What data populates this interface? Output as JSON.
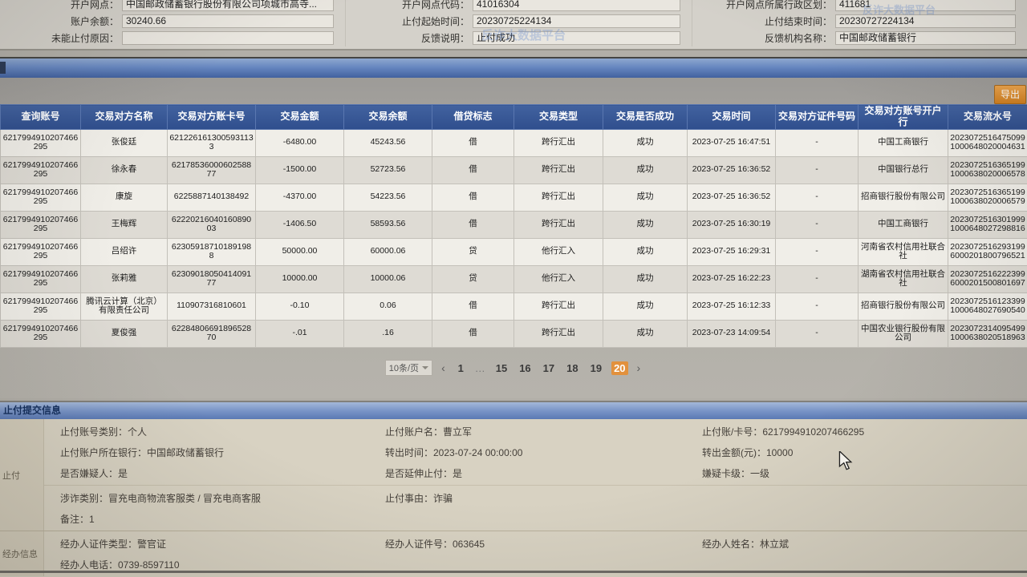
{
  "watermark": {
    "text": "反诈大数据平台"
  },
  "account_info": {
    "rows": [
      [
        {
          "label": "开户网点：",
          "value": "中国邮政储蓄银行股份有限公司项城市高寺..."
        },
        {
          "label": "开户网点代码：",
          "value": "41016304"
        },
        {
          "label": "开户网点所属行政区划：",
          "value": "411681"
        }
      ],
      [
        {
          "label": "账户余额：",
          "value": "30240.66"
        },
        {
          "label": "止付起始时间：",
          "value": "20230725224134"
        },
        {
          "label": "止付结束时间：",
          "value": "20230727224134"
        }
      ],
      [
        {
          "label": "未能止付原因：",
          "value": ""
        },
        {
          "label": "反馈说明：",
          "value": "止付成功"
        },
        {
          "label": "反馈机构名称：",
          "value": "中国邮政储蓄银行"
        }
      ]
    ]
  },
  "toolbar": {
    "export_label": "导出"
  },
  "transactions_table": {
    "columns": [
      "查询账号",
      "交易对方名称",
      "交易对方账卡号",
      "交易金额",
      "交易余额",
      "借贷标志",
      "交易类型",
      "交易是否成功",
      "交易时间",
      "交易对方证件号码",
      "交易对方账号开户行",
      "交易流水号"
    ],
    "rows": [
      [
        "6217994910207466295",
        "张俊廷",
        "6212261613005931133",
        "-6480.00",
        "45243.56",
        "借",
        "跨行汇出",
        "成功",
        "2023-07-25 16:47:51",
        "-",
        "中国工商银行",
        "20230725164750991000648020004631"
      ],
      [
        "6217994910207466295",
        "徐永春",
        "6217853600060258877",
        "-1500.00",
        "52723.56",
        "借",
        "跨行汇出",
        "成功",
        "2023-07-25 16:36:52",
        "-",
        "中国银行总行",
        "20230725163651991000638020006578"
      ],
      [
        "6217994910207466295",
        "康旋",
        "6225887140138492",
        "-4370.00",
        "54223.56",
        "借",
        "跨行汇出",
        "成功",
        "2023-07-25 16:36:52",
        "-",
        "招商银行股份有限公司",
        "20230725163651991000638020006579"
      ],
      [
        "6217994910207466295",
        "王梅辉",
        "6222021604016089003",
        "-1406.50",
        "58593.56",
        "借",
        "跨行汇出",
        "成功",
        "2023-07-25 16:30:19",
        "-",
        "中国工商银行",
        "20230725163019991000648027298816"
      ],
      [
        "6217994910207466295",
        "吕绍许",
        "623059187101891988",
        "50000.00",
        "60000.06",
        "贷",
        "他行汇入",
        "成功",
        "2023-07-25 16:29:31",
        "-",
        "河南省农村信用社联合社",
        "20230725162931996000201800796521"
      ],
      [
        "6217994910207466295",
        "张莉雅",
        "6230901805041409177",
        "10000.00",
        "10000.06",
        "贷",
        "他行汇入",
        "成功",
        "2023-07-25 16:22:23",
        "-",
        "湖南省农村信用社联合社",
        "20230725162223996000201500801697"
      ],
      [
        "6217994910207466295",
        "腾讯云计算（北京）有限责任公司",
        "110907316810601",
        "-0.10",
        "0.06",
        "借",
        "跨行汇出",
        "成功",
        "2023-07-25 16:12:33",
        "-",
        "招商银行股份有限公司",
        "20230725161233991000648027690540"
      ],
      [
        "6217994910207466295",
        "夏俊强",
        "6228480669189652870",
        "-.01",
        ".16",
        "借",
        "跨行汇出",
        "成功",
        "2023-07-23 14:09:54",
        "-",
        "中国农业银行股份有限公司",
        "20230723140954991000638020518963"
      ]
    ]
  },
  "pagination": {
    "page_size_label": "10条/页",
    "prev_icon": "‹",
    "next_icon": "›",
    "items": [
      "1",
      "…",
      "15",
      "16",
      "17",
      "18",
      "19",
      "20"
    ],
    "active_page": "20"
  },
  "stop_payment_panel": {
    "title": "止付提交信息",
    "groups": [
      {
        "rail_label": "止付",
        "blocks": [
          {
            "rows": [
              [
                {
                  "label": "止付账号类别",
                  "value": "个人"
                },
                {
                  "label": "止付账户名",
                  "value": "曹立军"
                },
                {
                  "label": "止付账/卡号",
                  "value": "6217994910207466295"
                }
              ],
              [
                {
                  "label": "止付账户所在银行",
                  "value": "中国邮政储蓄银行"
                },
                {
                  "label": "转出时间",
                  "value": "2023-07-24 00:00:00"
                },
                {
                  "label": "转出金额(元)",
                  "value": "10000"
                }
              ],
              [
                {
                  "label": "是否嫌疑人",
                  "value": "是"
                },
                {
                  "label": "是否延伸止付",
                  "value": "是"
                },
                {
                  "label": "嫌疑卡级",
                  "value": "一级"
                }
              ]
            ]
          },
          {
            "rows": [
              [
                {
                  "label": "涉诈类别",
                  "value": "冒充电商物流客服类 / 冒充电商客服"
                },
                {
                  "label": "止付事由",
                  "value": "诈骗"
                },
                null
              ],
              [
                {
                  "label": "备注",
                  "value": "1"
                },
                null,
                null
              ]
            ]
          }
        ]
      },
      {
        "rail_label": "经办信息",
        "blocks": [
          {
            "rows": [
              [
                {
                  "label": "经办人证件类型",
                  "value": "警官证"
                },
                {
                  "label": "经办人证件号",
                  "value": "063645"
                },
                {
                  "label": "经办人姓名",
                  "value": "林立斌"
                }
              ],
              [
                {
                  "label": "经办人电话",
                  "value": "0739-8597110"
                },
                null,
                null
              ]
            ]
          }
        ]
      }
    ]
  },
  "colors": {
    "table_header_blue": "#2f4e8d",
    "export_orange": "#d07f1f",
    "active_page_orange": "#e2913d",
    "panel_beige": "#d8d2c2"
  }
}
